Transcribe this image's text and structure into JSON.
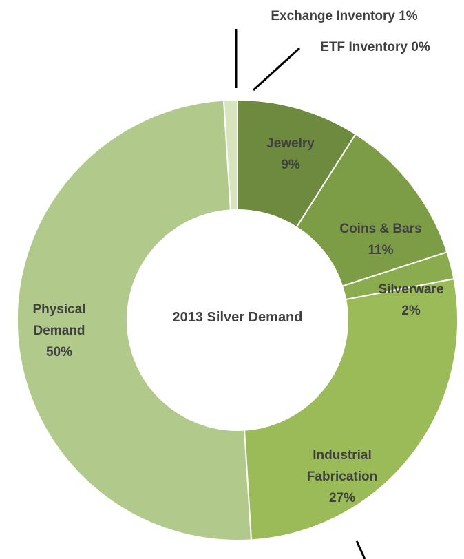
{
  "chart_data": {
    "type": "pie",
    "title": "2013 Silver Demand",
    "categories": [
      "Jewelry",
      "Coins & Bars",
      "Silverware",
      "Industrial Fabrication",
      "Physical Demand",
      "Exchange Inventory",
      "ETF Inventory"
    ],
    "values": [
      9,
      11,
      2,
      27,
      50,
      1,
      0
    ],
    "value_labels": [
      "9%",
      "11%",
      "2%",
      "27%",
      "50%",
      "1%",
      "0%"
    ],
    "colors": [
      "#6e8a3e",
      "#7d9c46",
      "#8aab4e",
      "#9bbb59",
      "#b1c98a",
      "#d7e4bd",
      "#e6eed6"
    ]
  }
}
